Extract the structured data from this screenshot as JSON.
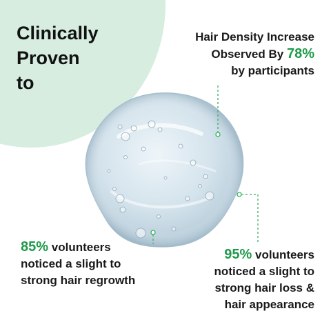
{
  "headline": {
    "line1": "Clinically",
    "line2": "Proven",
    "line3": "to"
  },
  "stat_top": {
    "line1": "Hair Density Increase",
    "line2_prefix": "Observed By",
    "percent": "78%",
    "line3": "by participants"
  },
  "stat_left": {
    "percent": "85%",
    "line1_suffix": "volunteers",
    "line2": "noticed a slight to",
    "line3": "strong hair regrowth"
  },
  "stat_right": {
    "percent": "95%",
    "line1_suffix": "volunteers",
    "line2": "noticed a slight to",
    "line3": "strong hair loss &",
    "line4": "hair appearance"
  },
  "colors": {
    "accent_green": "#1f9a4a",
    "blob_mint": "#d6ede0",
    "gel_blue": "#c9dbe6"
  },
  "images": {
    "gel": "gel-droplet-icon"
  }
}
